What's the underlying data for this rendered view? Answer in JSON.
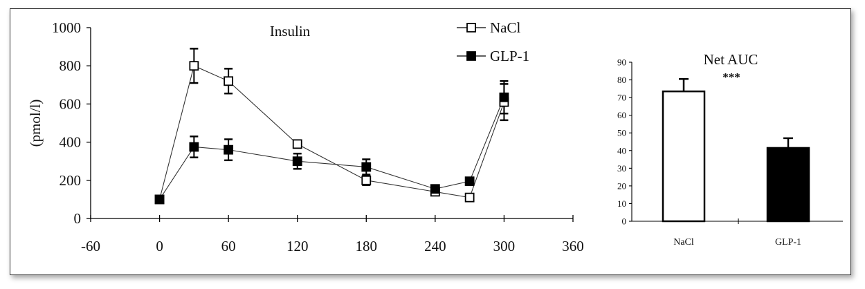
{
  "chart_data": [
    {
      "type": "line",
      "title": "Insulin",
      "ylabel": "(pmol/l)",
      "xlabel": "",
      "xlim": [
        -60,
        360
      ],
      "ylim": [
        0,
        1000
      ],
      "x_ticks": [
        -60,
        0,
        60,
        120,
        180,
        240,
        300,
        360
      ],
      "x_tick_labels": [
        "-60",
        "0",
        "60",
        "120",
        "180",
        "240",
        "300",
        "360"
      ],
      "y_ticks": [
        0,
        200,
        400,
        600,
        800,
        1000
      ],
      "y_tick_labels": [
        "0",
        "200",
        "400",
        "600",
        "800",
        "1000"
      ],
      "grid": false,
      "legend_position": "top-right",
      "series": [
        {
          "name": "NaCl",
          "marker": "open-square",
          "x": [
            0,
            30,
            60,
            120,
            180,
            240,
            270,
            300
          ],
          "y": [
            100,
            800,
            720,
            390,
            200,
            140,
            110,
            610
          ],
          "err": [
            0,
            90,
            65,
            0,
            25,
            0,
            0,
            95
          ]
        },
        {
          "name": "GLP-1",
          "marker": "filled-square",
          "x": [
            0,
            30,
            60,
            120,
            180,
            240,
            270,
            300
          ],
          "y": [
            100,
            375,
            360,
            300,
            270,
            155,
            195,
            635
          ],
          "err": [
            0,
            55,
            55,
            40,
            40,
            0,
            0,
            85
          ]
        }
      ],
      "colors": {
        "line": "#333333",
        "marker": "#000000"
      }
    },
    {
      "type": "bar",
      "title": "Net AUC",
      "annotation": "***",
      "categories": [
        "NaCl",
        "GLP-1"
      ],
      "values": [
        73.5,
        41.5
      ],
      "errors": [
        7,
        5.5
      ],
      "fills": [
        "#ffffff",
        "#000000"
      ],
      "ylim": [
        0,
        90
      ],
      "y_ticks": [
        0,
        10,
        20,
        30,
        40,
        50,
        60,
        70,
        80,
        90
      ],
      "y_tick_labels": [
        "0",
        "10",
        "20",
        "30",
        "40",
        "50",
        "60",
        "70",
        "80",
        "90"
      ],
      "grid": false
    }
  ]
}
